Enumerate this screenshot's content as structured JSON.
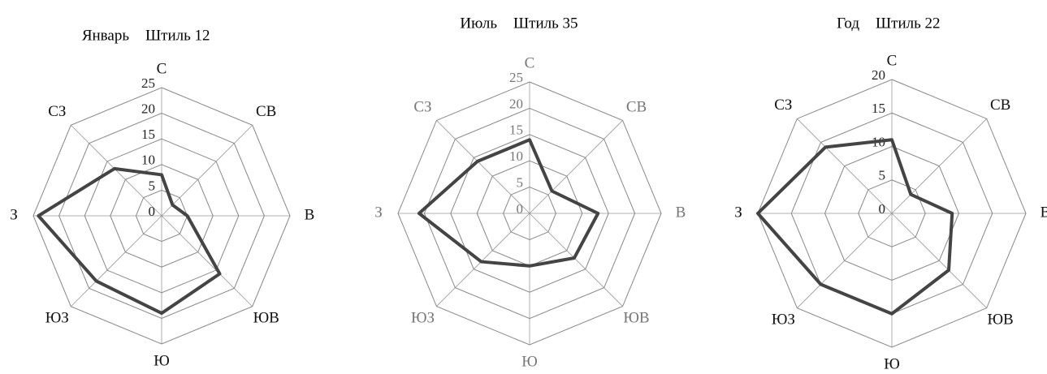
{
  "chart_data": [
    {
      "type": "radar",
      "title": "Январь",
      "subtitle": "Штиль 12",
      "categories": [
        "С",
        "СВ",
        "В",
        "ЮВ",
        "Ю",
        "ЮЗ",
        "З",
        "СЗ"
      ],
      "values": [
        8,
        3,
        5,
        16,
        19,
        18,
        24,
        13
      ],
      "rlim": [
        0,
        25
      ],
      "rticks": [
        0,
        5,
        10,
        15,
        20,
        25
      ],
      "color": "#444444",
      "label_color": "#111111",
      "tick_color": "#222222"
    },
    {
      "type": "radar",
      "title": "Июль",
      "subtitle": "Штиль 35",
      "categories": [
        "С",
        "СВ",
        "В",
        "ЮВ",
        "Ю",
        "ЮЗ",
        "З",
        "СЗ"
      ],
      "values": [
        14,
        6,
        13,
        12,
        10,
        13,
        21,
        14
      ],
      "rlim": [
        0,
        25
      ],
      "rticks": [
        0,
        5,
        10,
        15,
        20,
        25
      ],
      "color": "#444444",
      "label_color": "#777777",
      "tick_color": "#777777"
    },
    {
      "type": "radar",
      "title": "Год",
      "subtitle": "Штиль 22",
      "categories": [
        "С",
        "СВ",
        "В",
        "ЮВ",
        "Ю",
        "ЮЗ",
        "З",
        "СЗ"
      ],
      "values": [
        11,
        4,
        9,
        12,
        15,
        15,
        20,
        14
      ],
      "rlim": [
        0,
        20
      ],
      "rticks": [
        0,
        5,
        10,
        15,
        20
      ],
      "color": "#444444",
      "label_color": "#111111",
      "tick_color": "#222222"
    }
  ]
}
